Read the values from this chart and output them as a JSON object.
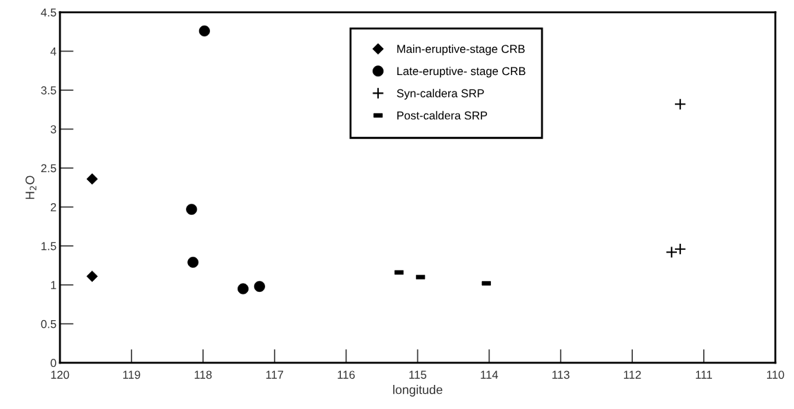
{
  "chart_data": {
    "type": "scatter",
    "xlabel": "longitude",
    "ylabel": "H$_{2}$O",
    "xlim": [
      120,
      110
    ],
    "xticks": [
      120,
      119,
      118,
      117,
      116,
      115,
      114,
      113,
      112,
      111,
      110
    ],
    "ylim": [
      0,
      4.5
    ],
    "yticks": [
      0,
      0.5,
      1,
      1.5,
      2,
      2.5,
      3,
      3.5,
      4,
      4.5
    ],
    "grid": false,
    "legend": "top",
    "series": [
      {
        "name": "Main-eruptive-stage CRB",
        "color": "#000000",
        "marker": "diamond",
        "x": [
          119.55,
          119.55
        ],
        "values": [
          2.36,
          1.11
        ]
      },
      {
        "name": "Late-eruptive- stage CRB",
        "color": "#000000",
        "marker": "circle",
        "x": [
          117.98,
          118.16,
          118.14,
          117.44,
          117.21
        ],
        "values": [
          4.26,
          1.97,
          1.29,
          0.95,
          0.98
        ]
      },
      {
        "name": "Syn-caldera SRP",
        "color": "#000000",
        "marker": "cross",
        "x": [
          111.33,
          111.45,
          111.33
        ],
        "values": [
          3.32,
          1.42,
          1.46
        ]
      },
      {
        "name": "Post-caldera SRP",
        "color": "#000000",
        "marker": "square",
        "x": [
          115.26,
          114.96,
          114.04
        ],
        "values": [
          1.16,
          1.1,
          1.02
        ]
      }
    ]
  }
}
